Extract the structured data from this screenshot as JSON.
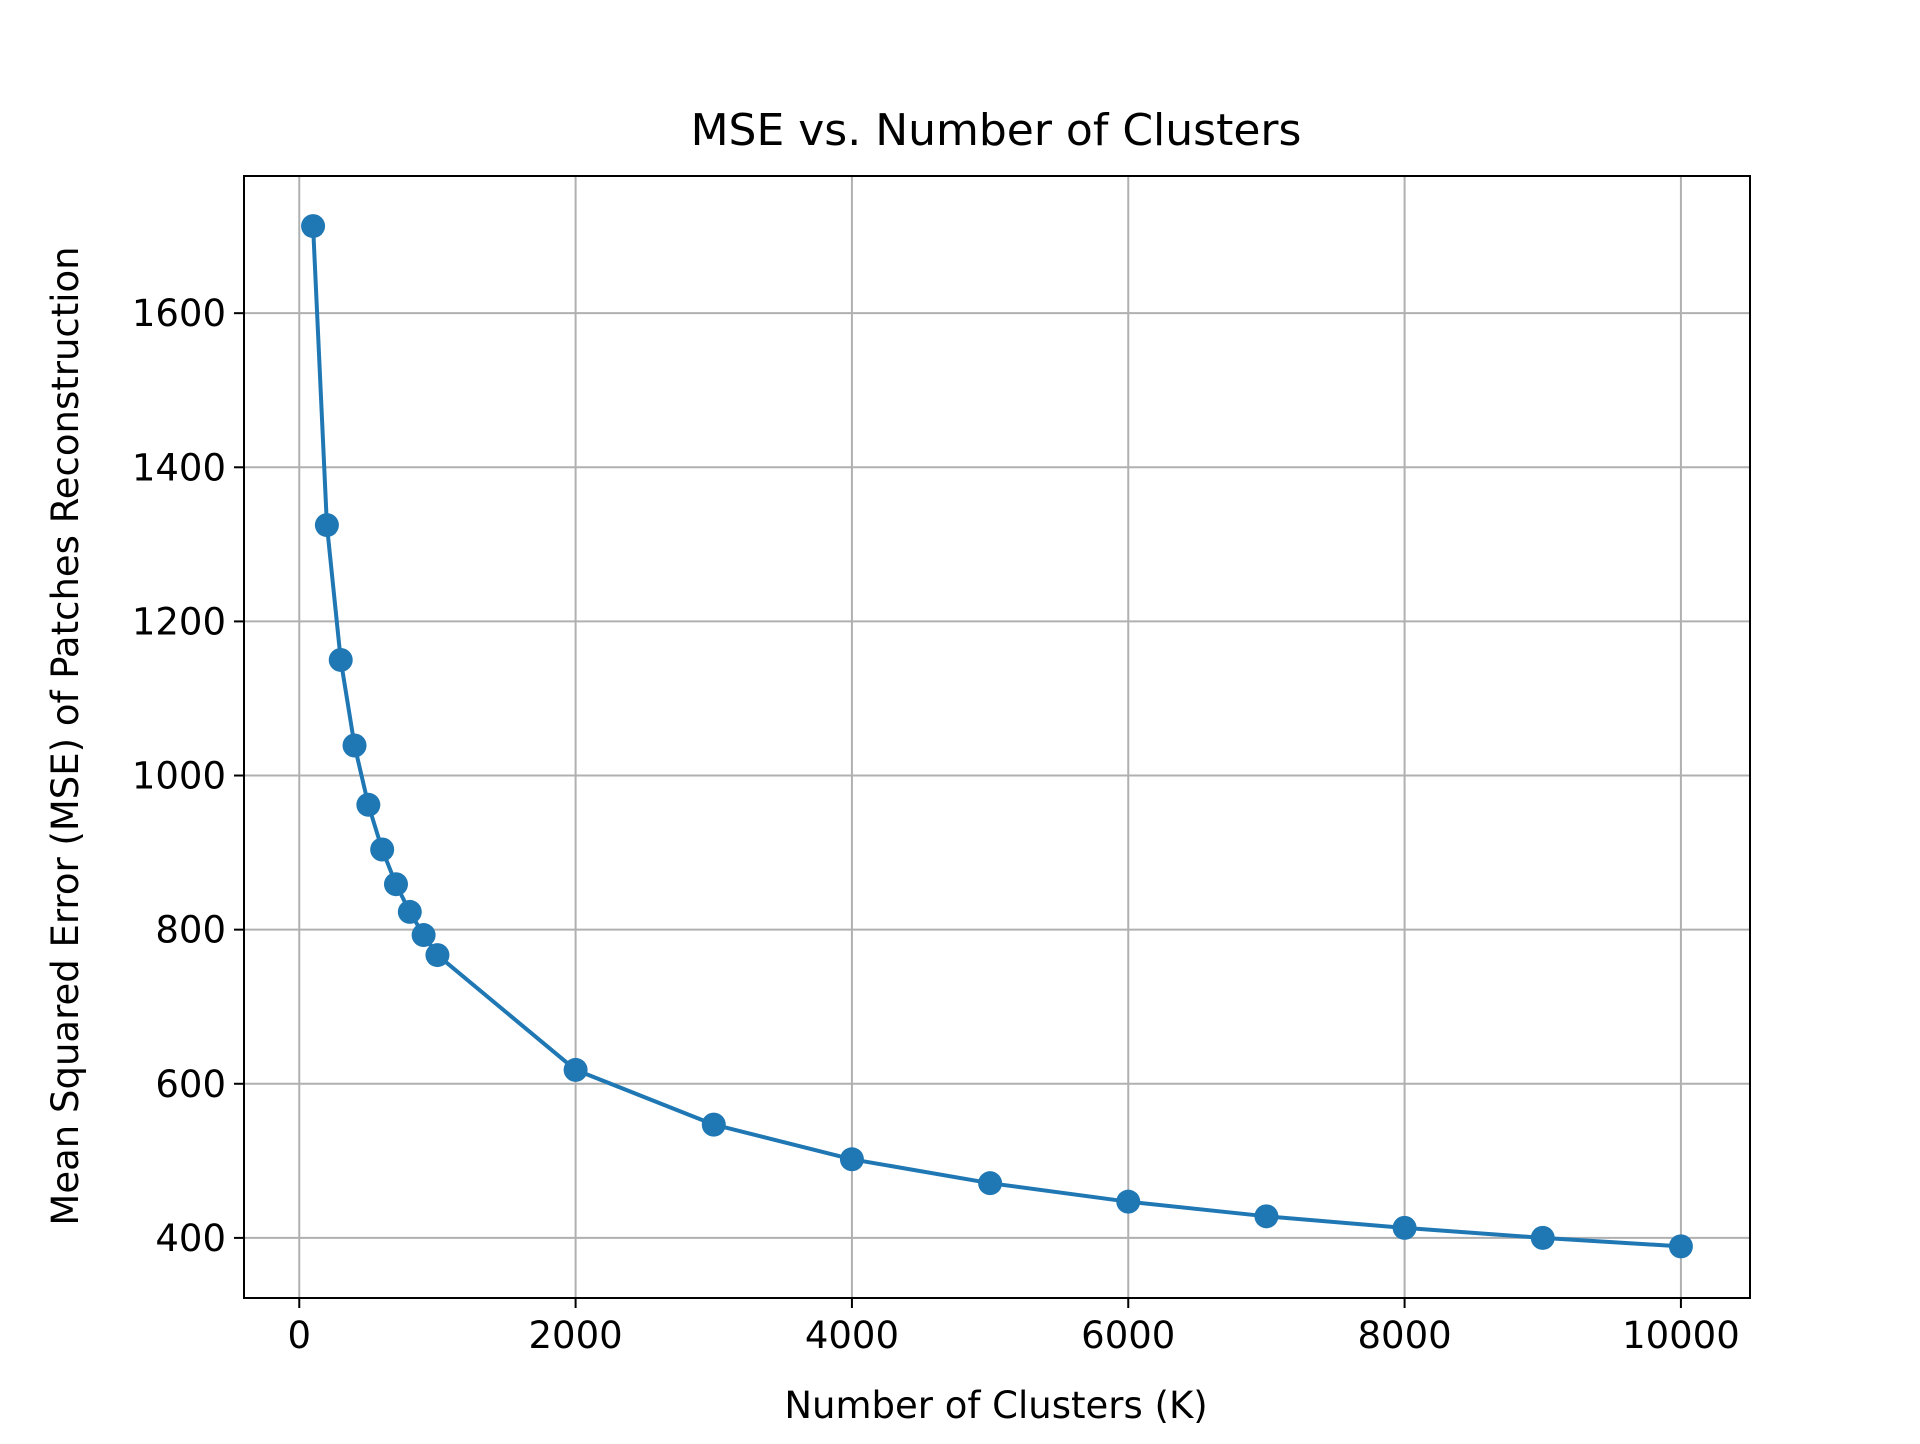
{
  "colors": {
    "line": "#1f77b4",
    "grid": "#b0b0b0",
    "axes": "#000000",
    "background": "#ffffff"
  },
  "chart_data": {
    "type": "line",
    "title": "MSE vs. Number of Clusters",
    "xlabel": "Number of Clusters (K)",
    "ylabel": "Mean Squared Error (MSE) of Patches Reconstruction",
    "xlim": [
      -400,
      10500
    ],
    "ylim": [
      322,
      1778
    ],
    "x_ticks": [
      0,
      2000,
      4000,
      6000,
      8000,
      10000
    ],
    "x_tick_labels": [
      "0",
      "2000",
      "4000",
      "6000",
      "8000",
      "10000"
    ],
    "y_ticks": [
      400,
      600,
      800,
      1000,
      1200,
      1400,
      1600
    ],
    "y_tick_labels": [
      "400",
      "600",
      "800",
      "1000",
      "1200",
      "1400",
      "1600"
    ],
    "grid": true,
    "marker": "circle",
    "series": [
      {
        "name": "MSE",
        "x": [
          100,
          200,
          300,
          400,
          500,
          600,
          700,
          800,
          900,
          1000,
          2000,
          3000,
          4000,
          5000,
          6000,
          7000,
          8000,
          9000,
          10000
        ],
        "y": [
          1713,
          1325,
          1150,
          1039,
          962,
          904,
          859,
          823,
          793,
          767,
          618,
          547,
          502,
          471,
          447,
          428,
          413,
          400,
          389
        ]
      }
    ]
  }
}
